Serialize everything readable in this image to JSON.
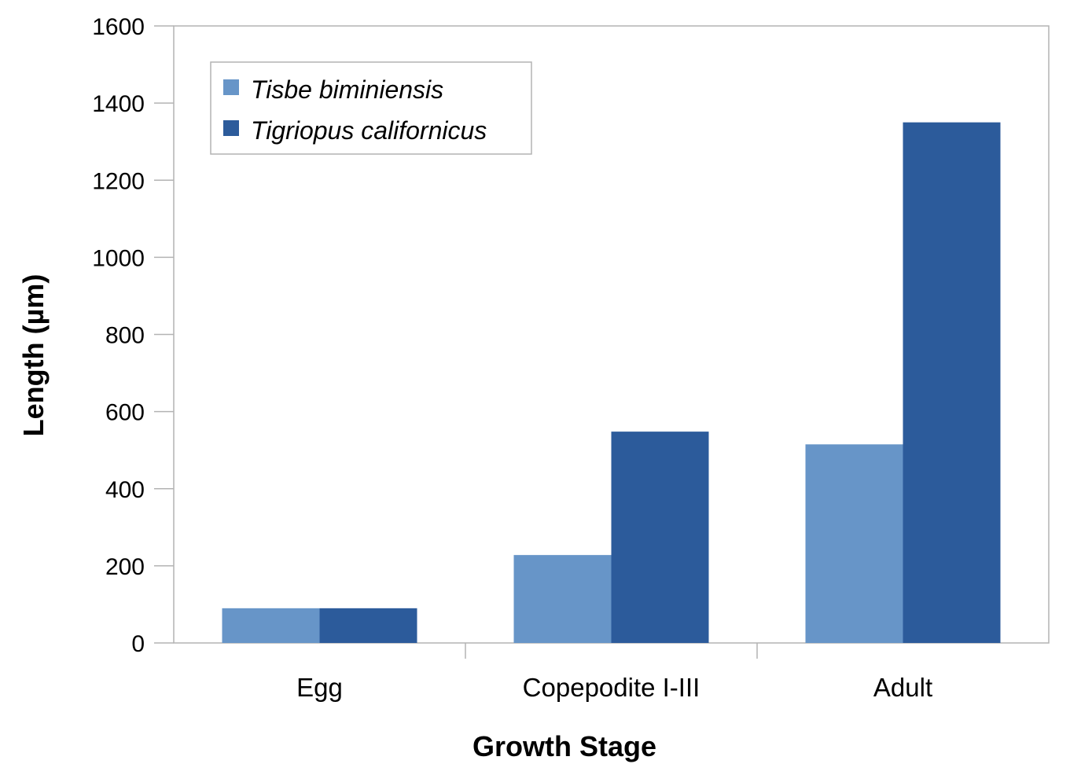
{
  "chart_data": {
    "type": "bar",
    "title": "",
    "xlabel": "Growth Stage",
    "ylabel": "Length (µm)",
    "categories": [
      "Egg",
      "Copepodite I-III",
      "Adult"
    ],
    "series": [
      {
        "name": "Tisbe biminiensis",
        "color": "#6795c8",
        "values": [
          90,
          228,
          515
        ]
      },
      {
        "name": "Tigriopus californicus",
        "color": "#2c5b9b",
        "values": [
          90,
          548,
          1350
        ]
      }
    ],
    "ylim": [
      0,
      1600
    ],
    "yticks": [
      "0",
      "200",
      "400",
      "600",
      "800",
      "1000",
      "1200",
      "1400",
      "1600"
    ],
    "grid": false,
    "legend_position": "top-left"
  }
}
